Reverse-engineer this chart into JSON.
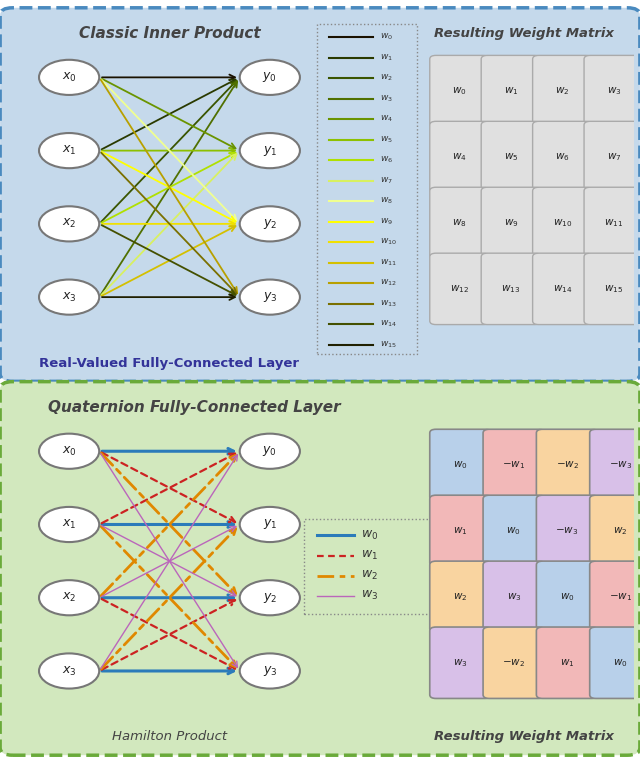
{
  "top_bg_color": "#c5d9eb",
  "bot_bg_color": "#d2e8be",
  "top_border_color": "#4a8abf",
  "bot_border_color": "#6aaa3a",
  "node_face_color": "white",
  "node_edge_color": "#888888",
  "top_title": "Classic Inner Product",
  "top_label": "Real-Valued Fully-Connected Layer",
  "bot_title": "Quaternion Fully-Connected Layer",
  "bot_sublabel": "Hamilton Product",
  "top_matrix_title": "Resulting Weight Matrix",
  "bot_matrix_title": "Resulting Weight Matrix",
  "top_matrix": [
    [
      "w_0",
      "w_1",
      "w_2",
      "w_3"
    ],
    [
      "w_4",
      "w_5",
      "w_6",
      "w_7"
    ],
    [
      "w_8",
      "w_9",
      "w_{10}",
      "w_{11}"
    ],
    [
      "w_{12}",
      "w_{13}",
      "w_{14}",
      "w_{15}"
    ]
  ],
  "bot_matrix": [
    [
      "w_0",
      "-w_1",
      "-w_2",
      "-w_3"
    ],
    [
      "w_1",
      "w_0",
      "-w_3",
      "w_2"
    ],
    [
      "w_2",
      "w_3",
      "w_0",
      "-w_1"
    ],
    [
      "w_3",
      "-w_2",
      "w_1",
      "w_0"
    ]
  ],
  "bot_matrix_colors": [
    [
      "#b8d0ea",
      "#f2b8b8",
      "#f9d4a0",
      "#d8c0e8"
    ],
    [
      "#f2b8b8",
      "#b8d0ea",
      "#d8c0e8",
      "#f9d4a0"
    ],
    [
      "#f9d4a0",
      "#d8c0e8",
      "#b8d0ea",
      "#f2b8b8"
    ],
    [
      "#d8c0e8",
      "#f9d4a0",
      "#f2b8b8",
      "#b8d0ea"
    ]
  ],
  "top_weight_colors": [
    "#1a1200",
    "#2a3a00",
    "#3a5500",
    "#507000",
    "#6a9400",
    "#8dc000",
    "#b0e000",
    "#d8f060",
    "#f0ff90",
    "#ffff00",
    "#f0e000",
    "#d4c000",
    "#b8a000",
    "#7a7000",
    "#445000",
    "#202000"
  ],
  "quat_w0_color": "#2b7bba",
  "quat_w1_color": "#cc2222",
  "quat_w2_color": "#e08800",
  "quat_w3_color": "#bb66bb"
}
